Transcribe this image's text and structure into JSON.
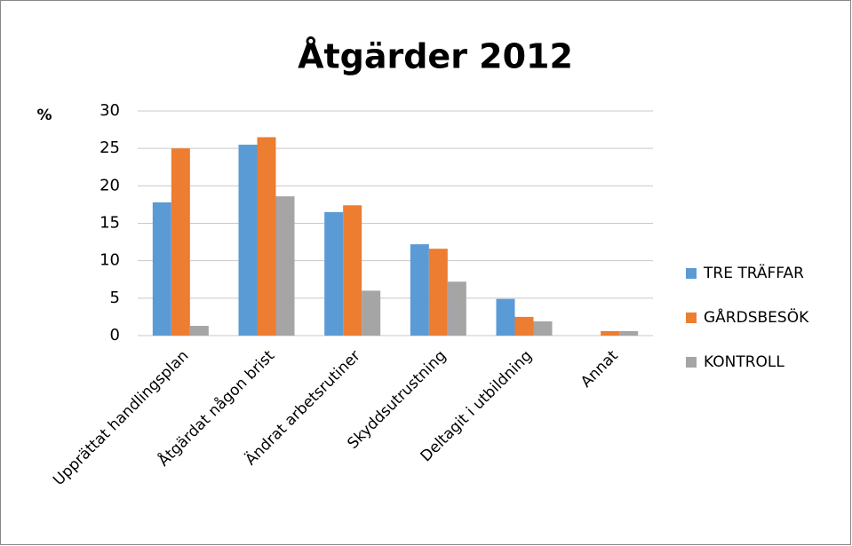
{
  "chart_data": {
    "type": "bar",
    "title": "Åtgärder 2012",
    "y_label": "%",
    "categories": [
      "Upprättat handlingsplan",
      "Åtgärdat någon brist",
      "Ändrat arbetsrutiner",
      "Skyddsutrustning",
      "Deltagit i utbildning",
      "Annat"
    ],
    "series": [
      {
        "name": "TRE TRÄFFAR",
        "color": "#5b9bd5",
        "values": [
          17.8,
          25.5,
          16.5,
          12.2,
          4.9,
          0
        ]
      },
      {
        "name": "GÅRDSBESÖK",
        "color": "#ed7d31",
        "values": [
          25,
          26.5,
          17.4,
          11.6,
          2.5,
          0.6
        ]
      },
      {
        "name": "KONTROLL",
        "color": "#a5a5a5",
        "values": [
          1.3,
          18.6,
          6.0,
          7.2,
          1.9,
          0.6
        ]
      }
    ],
    "ylim": [
      0,
      30
    ],
    "yticks": [
      0,
      5,
      10,
      15,
      20,
      25,
      30
    ],
    "grid": true,
    "legend": "right"
  }
}
